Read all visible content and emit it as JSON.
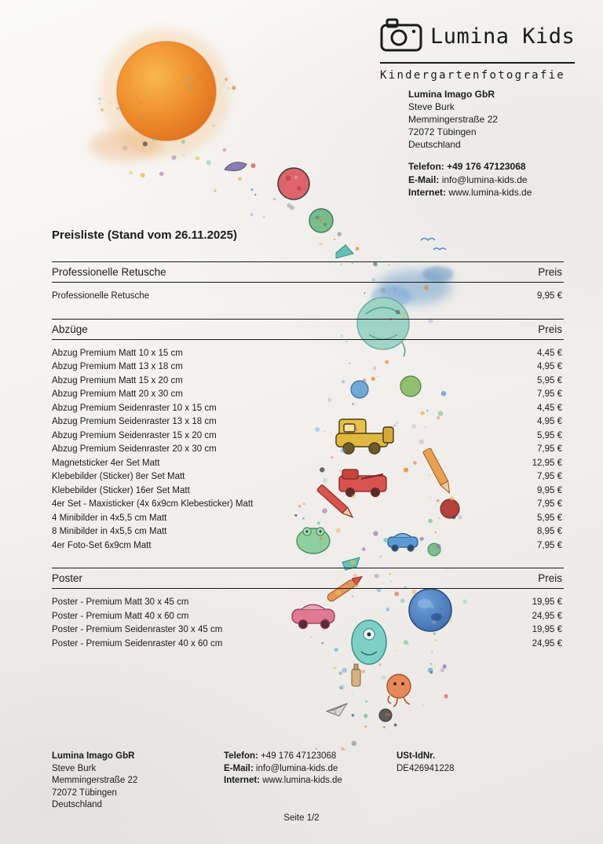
{
  "brand": {
    "name": "Lumina Kids",
    "tagline": "Kindergartenfotografie"
  },
  "header_contact": {
    "company": "Lumina Imago GbR",
    "person": "Steve Burk",
    "street": "Memmingerstraße 22",
    "city": "72072 Tübingen",
    "country": "Deutschland",
    "phone_label": "Telefon:",
    "phone_value": "+49 176 47123068",
    "email_label": "E-Mail:",
    "email_value": "info@lumina-kids.de",
    "web_label": "Internet:",
    "web_value": "www.lumina-kids.de"
  },
  "document": {
    "title": "Preisliste (Stand vom 26.11.2025)",
    "price_column_header": "Preis",
    "page_label": "Seite 1/2"
  },
  "sections": [
    {
      "name": "Professionelle Retusche",
      "items": [
        {
          "label": "Professionelle Retusche",
          "price": "9,95 €"
        }
      ]
    },
    {
      "name": "Abzüge",
      "items": [
        {
          "label": "Abzug Premium Matt 10 x 15 cm",
          "price": "4,45 €"
        },
        {
          "label": "Abzug Premium Matt 13 x 18 cm",
          "price": "4,95 €"
        },
        {
          "label": "Abzug Premium Matt 15 x 20 cm",
          "price": "5,95 €"
        },
        {
          "label": "Abzug Premium Matt 20 x 30 cm",
          "price": "7,95 €"
        },
        {
          "label": "Abzug Premium Seidenraster 10 x 15 cm",
          "price": "4,45 €"
        },
        {
          "label": "Abzug Premium Seidenraster 13 x 18 cm",
          "price": "4,95 €"
        },
        {
          "label": "Abzug Premium Seidenraster 15 x 20 cm",
          "price": "5,95 €"
        },
        {
          "label": "Abzug Premium Seidenraster 20 x 30 cm",
          "price": "7,95 €"
        },
        {
          "label": "Magnetsticker 4er Set Matt",
          "price": "12,95 €"
        },
        {
          "label": "Klebebilder (Sticker) 8er Set Matt",
          "price": "7,95 €"
        },
        {
          "label": "Klebebilder (Sticker) 16er Set Matt",
          "price": "9,95 €"
        },
        {
          "label": "4er Set - Maxisticker (4x 6x9cm Klebesticker) Matt",
          "price": "7,95 €"
        },
        {
          "label": "4 Minibilder in 4x5,5 cm Matt",
          "price": "5,95 €"
        },
        {
          "label": "8 Minibilder in 4x5,5 cm Matt",
          "price": "8,95 €"
        },
        {
          "label": "4er Foto-Set 6x9cm Matt",
          "price": "7,95 €"
        }
      ]
    },
    {
      "name": "Poster",
      "items": [
        {
          "label": "Poster - Premium Matt 30 x 45 cm",
          "price": "19,95 €"
        },
        {
          "label": "Poster - Premium Matt 40 x 60 cm",
          "price": "24,95 €"
        },
        {
          "label": "Poster - Premium Seidenraster 30 x 45 cm",
          "price": "19,95 €"
        },
        {
          "label": "Poster - Premium Seidenraster 40 x 60 cm",
          "price": "24,95 €"
        }
      ]
    }
  ],
  "footer": {
    "company": "Lumina Imago GbR",
    "person": "Steve Burk",
    "street": "Memmingerstraße 22",
    "city": "72072 Tübingen",
    "country": "Deutschland",
    "phone_label": "Telefon:",
    "phone_value": "+49 176 47123068",
    "email_label": "E-Mail:",
    "email_value": "info@lumina-kids.de",
    "web_label": "Internet:",
    "web_value": "www.lumina-kids.de",
    "vat_label": "USt-IdNr.",
    "vat_value": "DE426941228"
  },
  "colors": {
    "ink": "#1b1b1b",
    "sun_orange": "#ef8f2e",
    "paper": "#f3f1ee"
  }
}
